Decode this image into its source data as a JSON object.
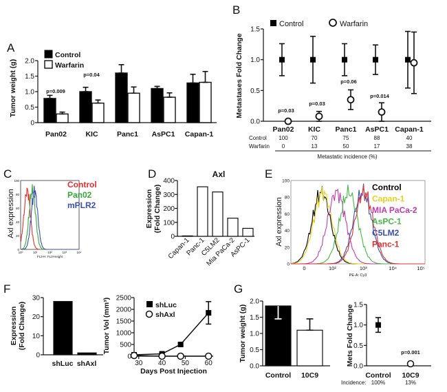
{
  "panels": {
    "A": "A",
    "B": "B",
    "C": "C",
    "D": "D",
    "E": "E",
    "F": "F",
    "G": "G"
  },
  "chart_data": [
    {
      "id": "A",
      "type": "bar",
      "ylabel": "Tumor weight (g)",
      "ylim": [
        0,
        2.0
      ],
      "yticks": [
        "0",
        "0.5",
        "1.0",
        "1.5",
        "2.0"
      ],
      "categories": [
        "Pan02",
        "KIC",
        "Panc1",
        "AsPC1",
        "Capan-1"
      ],
      "series": [
        {
          "name": "Control",
          "color": "#000000",
          "values": [
            0.78,
            1.0,
            1.6,
            1.1,
            1.28
          ],
          "errors": [
            0.1,
            0.14,
            0.27,
            0.07,
            0.28
          ]
        },
        {
          "name": "Warfarin",
          "color": "#ffffff",
          "values": [
            0.28,
            0.63,
            0.95,
            0.82,
            1.3
          ],
          "errors": [
            0.06,
            0.1,
            0.2,
            0.14,
            0.35
          ]
        }
      ],
      "annotations": [
        {
          "category": "Pan02",
          "text": "p=0.009"
        },
        {
          "category": "KIC",
          "text": "p=0.04"
        }
      ]
    },
    {
      "id": "B",
      "type": "scatter",
      "ylabel": "Metastases Fold Change",
      "ylim": [
        0,
        1.5
      ],
      "yticks": [
        "0.0",
        "0.5",
        "1.0",
        "1.5"
      ],
      "categories": [
        "Pan02",
        "KIC",
        "Panc1",
        "AsPC1",
        "Capan-1"
      ],
      "series": [
        {
          "name": "Control",
          "marker": "square",
          "values": [
            1.0,
            1.0,
            1.0,
            1.0,
            1.0
          ],
          "errors": [
            0.26,
            0.38,
            0.26,
            0.24,
            0.46
          ]
        },
        {
          "name": "Warfarin",
          "marker": "circle",
          "values": [
            0.0,
            0.08,
            0.35,
            0.15,
            0.95
          ],
          "errors": [
            0.0,
            0.08,
            0.16,
            0.15,
            0.5
          ]
        }
      ],
      "annotations": [
        {
          "category": "Pan02",
          "text": "p=0.03"
        },
        {
          "category": "KIC",
          "text": "p=0.03"
        },
        {
          "category": "Panc1",
          "text": "p=0.06"
        },
        {
          "category": "AsPC1",
          "text": "p=0.014"
        }
      ],
      "incidence_table": {
        "rows": [
          {
            "label": "Control",
            "values": [
              "100",
              "70",
              "75",
              "88",
              "40"
            ]
          },
          {
            "label": "Warfarin",
            "values": [
              "0",
              "13",
              "50",
              "17",
              "38"
            ]
          }
        ],
        "caption": "Metastatic incidence (%)"
      }
    },
    {
      "id": "C",
      "type": "line",
      "ylabel": "Axl expression",
      "xlabel": "FL3-H: FL3-Height",
      "yticks": [
        "0",
        "20",
        "40",
        "60",
        "80",
        "100"
      ],
      "xticks": [
        "10⁰",
        "10¹",
        "10²",
        "10³",
        "10⁴"
      ],
      "legend": [
        {
          "name": "Control",
          "color": "#e03030"
        },
        {
          "name": "Pan02",
          "color": "#33aa33"
        },
        {
          "name": "mPLR2",
          "color": "#3a4fb0"
        }
      ],
      "series": [
        {
          "name": "Control",
          "peak_log10": 0.45
        },
        {
          "name": "Pan02",
          "peak_log10": 0.8
        },
        {
          "name": "mPLR2",
          "peak_log10": 0.95
        }
      ]
    },
    {
      "id": "D",
      "type": "bar",
      "title": "Axl",
      "ylabel": "Expression\n(Fold Change)",
      "ylim": [
        0,
        400
      ],
      "yticks": [
        "0",
        "100",
        "200",
        "300",
        "400"
      ],
      "categories": [
        "Capan-1",
        "Panc-1",
        "C5LM2",
        "Mia PaCa-2",
        "AsPC-1"
      ],
      "values": [
        3,
        355,
        318,
        130,
        57
      ]
    },
    {
      "id": "E",
      "type": "line",
      "ylabel": "Axl expression",
      "xlabel": "PE-A: Cy3",
      "yticks": [
        "0",
        "20",
        "40",
        "60",
        "80",
        "100"
      ],
      "xticks": [
        "0",
        "10²",
        "10³",
        "10⁴",
        "10⁵"
      ],
      "legend": [
        {
          "name": "Control",
          "color": "#000000"
        },
        {
          "name": "Capan-1",
          "color": "#e6d21e"
        },
        {
          "name": "MIA PaCa-2",
          "color": "#c03ab0"
        },
        {
          "name": "AsPC-1",
          "color": "#44b844"
        },
        {
          "name": "C5LM2",
          "color": "#3a4fb0"
        },
        {
          "name": "Panc-1",
          "color": "#e03030"
        }
      ],
      "series": [
        {
          "name": "Control",
          "peak_log10": 1.8
        },
        {
          "name": "Capan-1",
          "peak_log10": 1.85
        },
        {
          "name": "MIA PaCa-2",
          "peak_log10": 2.3
        },
        {
          "name": "AsPC-1",
          "peak_log10": 2.7
        },
        {
          "name": "C5LM2",
          "peak_log10": 3.15
        },
        {
          "name": "Panc-1",
          "peak_log10": 3.2
        }
      ]
    },
    {
      "id": "F1",
      "type": "bar",
      "ylabel": "Expression\n(Fold Change)",
      "ylim": [
        0,
        30
      ],
      "yticks": [
        "0",
        "10",
        "20",
        "30"
      ],
      "categories": [
        "shLuc",
        "shAxl"
      ],
      "values": [
        28,
        1
      ]
    },
    {
      "id": "F2",
      "type": "line",
      "ylabel": "Tumor Vol (mm³)",
      "xlabel": "Days Post Injection",
      "xlim": [
        28,
        62
      ],
      "ylim": [
        0,
        2500
      ],
      "xticks": [
        "30",
        "40",
        "50",
        "60"
      ],
      "yticks": [
        "0",
        "500",
        "1000",
        "1500",
        "2000",
        "2500"
      ],
      "series": [
        {
          "name": "shLuc",
          "marker": "square",
          "x": [
            28,
            40,
            48,
            60
          ],
          "values": [
            60,
            100,
            500,
            1850
          ],
          "errors": [
            40,
            40,
            50,
            480
          ]
        },
        {
          "name": "shAxl",
          "marker": "circle",
          "x": [
            28,
            40,
            48,
            60
          ],
          "values": [
            30,
            0,
            0,
            0
          ],
          "errors": [
            0,
            0,
            0,
            0
          ]
        }
      ]
    },
    {
      "id": "G1",
      "type": "bar",
      "ylabel": "Tumor weight (g)",
      "ylim": [
        0,
        2.0
      ],
      "yticks": [
        "0.0",
        "0.5",
        "1.0",
        "1.5",
        "2.0"
      ],
      "categories": [
        "Control",
        "10C9"
      ],
      "values": [
        1.85,
        1.1
      ],
      "errors": [
        0.4,
        0.35
      ],
      "colors": [
        "#000000",
        "#ffffff"
      ]
    },
    {
      "id": "G2",
      "type": "scatter",
      "ylabel": "Mets Fold  Change",
      "ylim": [
        0,
        1.5
      ],
      "yticks": [
        "0.0",
        "0.5",
        "1.0",
        "1.5"
      ],
      "categories": [
        "Control",
        "10C9"
      ],
      "values": [
        1.0,
        0.05
      ],
      "errors": [
        0.18,
        0.05
      ],
      "markers": [
        "square",
        "circle"
      ],
      "annotation": "p=0.001",
      "incidence_label": "Incidence:",
      "incidence": [
        "100%",
        "13%"
      ]
    }
  ]
}
